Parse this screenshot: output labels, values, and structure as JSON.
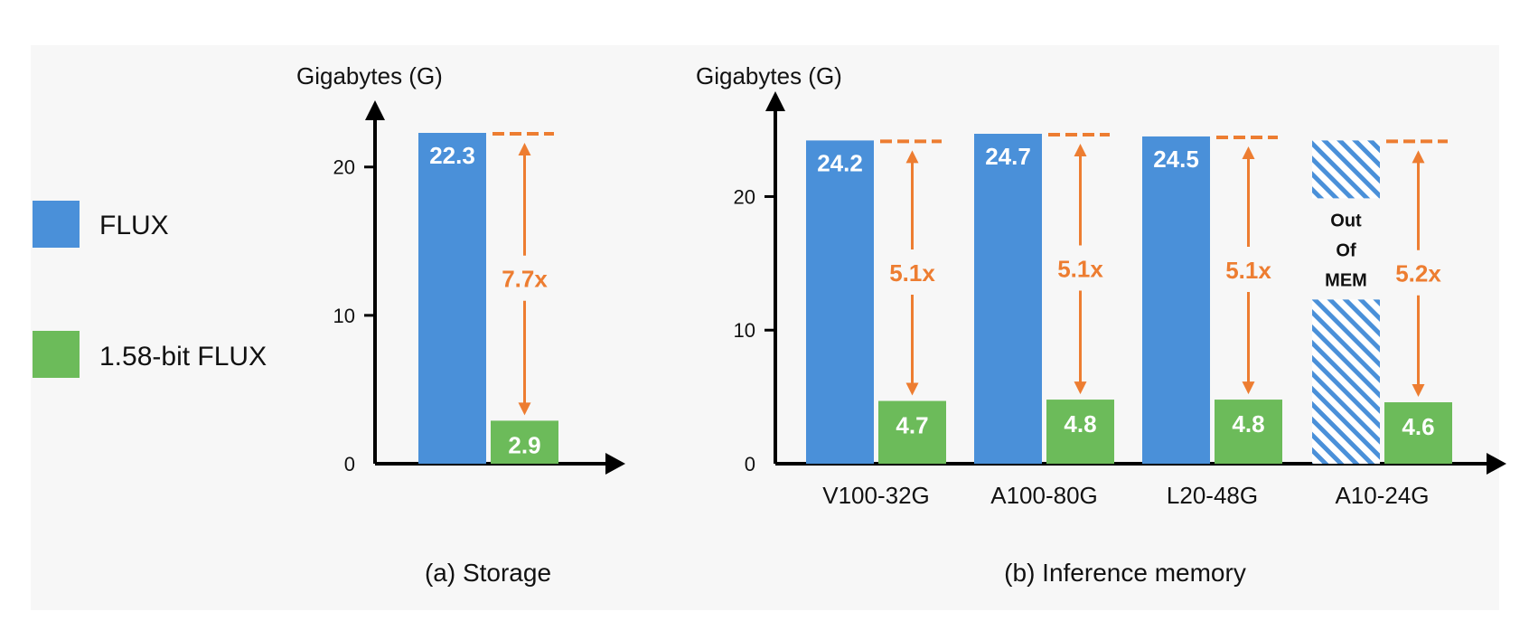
{
  "colors": {
    "flux": "#4a90d9",
    "flux_1_58": "#6cbb5a",
    "ratio": "#ed7d31",
    "background": "#f7f7f7"
  },
  "legend": [
    {
      "label": "FLUX",
      "color": "#4a90d9"
    },
    {
      "label": "1.58-bit FLUX",
      "color": "#6cbb5a"
    }
  ],
  "chart_data": [
    {
      "type": "bar",
      "caption": "(a) Storage",
      "ylabel": "Gigabytes (G)",
      "xlabel": "",
      "ylim": [
        0,
        22.3
      ],
      "yticks": [
        0,
        10,
        20
      ],
      "categories": [
        ""
      ],
      "series": [
        {
          "name": "FLUX",
          "values": [
            22.3
          ],
          "labels": [
            "22.3"
          ]
        },
        {
          "name": "1.58-bit FLUX",
          "values": [
            2.9
          ],
          "labels": [
            "2.9"
          ]
        }
      ],
      "ratios": [
        "7.7x"
      ],
      "out_of_memory": [
        false
      ],
      "out_of_memory_label": ""
    },
    {
      "type": "bar",
      "caption": "(b) Inference memory",
      "ylabel": "Gigabytes (G)",
      "xlabel": "",
      "ylim": [
        0,
        24.7
      ],
      "yticks": [
        0,
        10,
        20
      ],
      "categories": [
        "V100-32G",
        "A100-80G",
        "L20-48G",
        "A10-24G"
      ],
      "series": [
        {
          "name": "FLUX",
          "values": [
            24.2,
            24.7,
            24.5,
            24.2
          ],
          "labels": [
            "24.2",
            "24.7",
            "24.5",
            ""
          ]
        },
        {
          "name": "1.58-bit FLUX",
          "values": [
            4.7,
            4.8,
            4.8,
            4.6
          ],
          "labels": [
            "4.7",
            "4.8",
            "4.8",
            "4.6"
          ]
        }
      ],
      "ratios": [
        "5.1x",
        "5.1x",
        "5.1x",
        "5.2x"
      ],
      "out_of_memory": [
        false,
        false,
        false,
        true
      ],
      "out_of_memory_label": "Out Of MEM"
    }
  ]
}
